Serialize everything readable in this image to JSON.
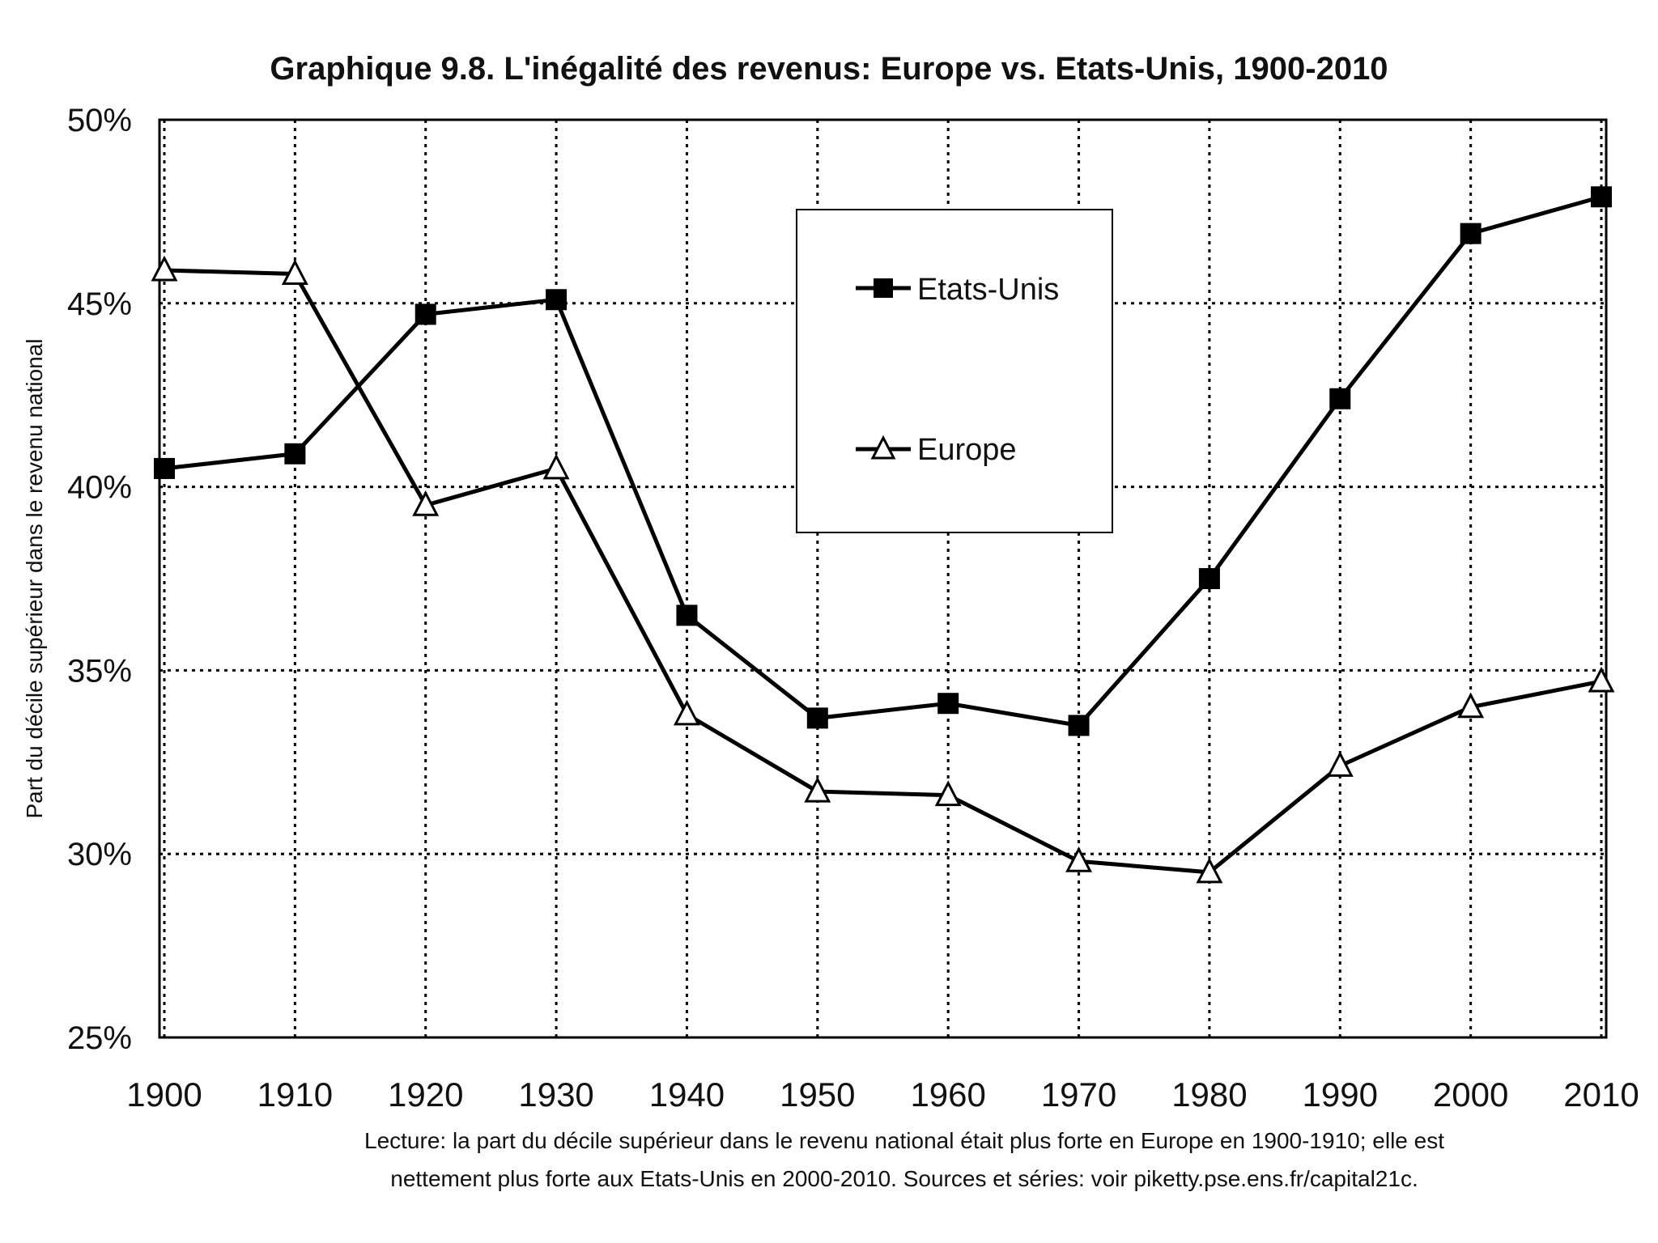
{
  "chart_data": {
    "type": "line",
    "title": "Graphique 9.8. L'inégalité des revenus: Europe vs. Etats-Unis, 1900-2010",
    "xlabel": "",
    "ylabel": "Part du décile supérieur dans le revenu national",
    "categories": [
      "1900",
      "1910",
      "1920",
      "1930",
      "1940",
      "1950",
      "1960",
      "1970",
      "1980",
      "1990",
      "2000",
      "2010"
    ],
    "ylim": [
      25,
      50
    ],
    "yticks": [
      25,
      30,
      35,
      40,
      45,
      50
    ],
    "ytick_labels": [
      "25%",
      "30%",
      "35%",
      "40%",
      "45%",
      "50%"
    ],
    "grid": true,
    "legend_position": "top-center",
    "series": [
      {
        "name": "Etats-Unis",
        "marker": "filled-square",
        "values": [
          40.5,
          40.9,
          44.7,
          45.1,
          36.5,
          33.7,
          34.1,
          33.5,
          37.5,
          42.4,
          46.9,
          47.9
        ]
      },
      {
        "name": "Europe",
        "marker": "open-triangle",
        "values": [
          45.9,
          45.8,
          39.5,
          40.5,
          33.8,
          31.7,
          31.6,
          29.8,
          29.5,
          32.4,
          34.0,
          34.7
        ]
      }
    ],
    "caption_line1": "Lecture: la part du décile supérieur dans le revenu national était plus forte en Europe en 1900-1910; elle est",
    "caption_line2": "nettement plus forte aux Etats-Unis en 2000-2010. Sources et séries: voir piketty.pse.ens.fr/capital21c."
  }
}
